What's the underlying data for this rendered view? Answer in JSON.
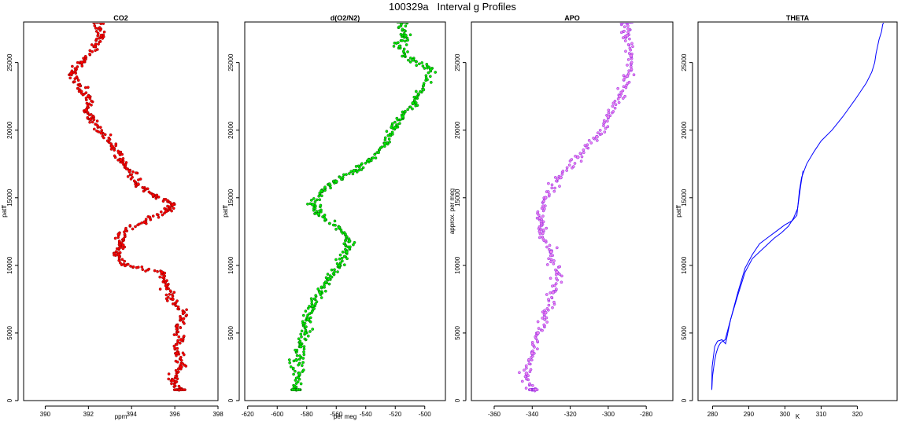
{
  "page": {
    "title": "100329a   Interval g Profiles"
  },
  "chart_data": [
    {
      "type": "scatter",
      "title": "CO2",
      "xlabel": "ppm",
      "ylabel": "patff",
      "xlim": [
        389,
        398
      ],
      "ylim": [
        0,
        28000
      ],
      "x_ticks": [
        390,
        392,
        394,
        396,
        398
      ],
      "y_ticks": [
        0,
        5000,
        10000,
        15000,
        20000,
        25000
      ],
      "marker_color": "#ff0000",
      "outline_color": "#8b0000",
      "points": [
        [
          396.2,
          800
        ],
        [
          395.9,
          1500
        ],
        [
          396.3,
          2500
        ],
        [
          396.1,
          3500
        ],
        [
          396.3,
          4500
        ],
        [
          396.1,
          5500
        ],
        [
          396.4,
          6500
        ],
        [
          395.9,
          7500
        ],
        [
          395.6,
          8500
        ],
        [
          395.4,
          9500
        ],
        [
          393.7,
          10000
        ],
        [
          393.4,
          10800
        ],
        [
          393.6,
          11500
        ],
        [
          393.4,
          12300
        ],
        [
          394.6,
          13200
        ],
        [
          395.6,
          14000
        ],
        [
          395.9,
          14500
        ],
        [
          395.0,
          15200
        ],
        [
          394.3,
          16000
        ],
        [
          393.9,
          17000
        ],
        [
          393.5,
          17800
        ],
        [
          393.1,
          18800
        ],
        [
          392.6,
          19800
        ],
        [
          392.1,
          20800
        ],
        [
          391.9,
          21500
        ],
        [
          392.0,
          22500
        ],
        [
          391.6,
          23300
        ],
        [
          391.2,
          24200
        ],
        [
          391.7,
          25000
        ],
        [
          392.3,
          26200
        ],
        [
          392.6,
          27000
        ],
        [
          392.4,
          28000
        ]
      ]
    },
    {
      "type": "scatter",
      "title": "d(O2/N2)",
      "xlabel": "per meg",
      "ylabel": "patff",
      "xlim": [
        -622,
        -486
      ],
      "ylim": [
        0,
        28000
      ],
      "x_ticks": [
        -620,
        -600,
        -580,
        -560,
        -540,
        -520,
        -500
      ],
      "y_ticks": [
        0,
        5000,
        10000,
        15000,
        20000,
        25000
      ],
      "marker_color": "#00ee00",
      "outline_color": "#006400",
      "points": [
        [
          -587,
          800
        ],
        [
          -585,
          2000
        ],
        [
          -587,
          3000
        ],
        [
          -584,
          4000
        ],
        [
          -581,
          5000
        ],
        [
          -579,
          6000
        ],
        [
          -576,
          7000
        ],
        [
          -571,
          8000
        ],
        [
          -565,
          9000
        ],
        [
          -558,
          10000
        ],
        [
          -553,
          11000
        ],
        [
          -551,
          11800
        ],
        [
          -558,
          12800
        ],
        [
          -572,
          13800
        ],
        [
          -576,
          14500
        ],
        [
          -570,
          15500
        ],
        [
          -560,
          16200
        ],
        [
          -548,
          17000
        ],
        [
          -538,
          17800
        ],
        [
          -527,
          19000
        ],
        [
          -520,
          20200
        ],
        [
          -515,
          21000
        ],
        [
          -508,
          22000
        ],
        [
          -501,
          23000
        ],
        [
          -496,
          24500
        ],
        [
          -508,
          25200
        ],
        [
          -517,
          26200
        ],
        [
          -513,
          27000
        ],
        [
          -515,
          28000
        ]
      ]
    },
    {
      "type": "scatter",
      "title": "APO",
      "xlabel": "",
      "ylabel": "approx. per meg",
      "xlim": [
        -372,
        -266
      ],
      "ylim": [
        0,
        28000
      ],
      "x_ticks": [
        -360,
        -340,
        -320,
        -300,
        -280
      ],
      "y_ticks": [
        0,
        5000,
        10000,
        15000,
        20000,
        25000
      ],
      "marker_color": "#ee82ee",
      "outline_color": "#8a2be2",
      "points": [
        [
          -340,
          800
        ],
        [
          -343,
          2000
        ],
        [
          -340,
          3500
        ],
        [
          -337,
          5000
        ],
        [
          -333,
          6500
        ],
        [
          -329,
          8000
        ],
        [
          -327,
          9500
        ],
        [
          -330,
          11000
        ],
        [
          -336,
          12500
        ],
        [
          -336,
          13500
        ],
        [
          -333,
          15000
        ],
        [
          -325,
          16500
        ],
        [
          -316,
          18000
        ],
        [
          -306,
          19500
        ],
        [
          -300,
          21000
        ],
        [
          -294,
          22500
        ],
        [
          -290,
          24000
        ],
        [
          -288,
          25500
        ],
        [
          -290,
          27000
        ],
        [
          -290,
          28000
        ]
      ]
    },
    {
      "type": "line",
      "title": "THETA",
      "xlabel": "K",
      "ylabel": "patff",
      "xlim": [
        276,
        331
      ],
      "ylim": [
        0,
        28000
      ],
      "x_ticks": [
        280,
        290,
        300,
        310,
        320
      ],
      "y_ticks": [
        0,
        5000,
        10000,
        15000,
        20000,
        25000
      ],
      "line_color": "#0000ff",
      "series": [
        {
          "x": [
            279.8,
            279.9,
            280.6,
            281.4,
            282.6,
            283.6,
            285.0,
            287.0,
            289.0,
            291.0,
            293.0,
            295.0,
            297.5,
            300.0,
            302.0,
            303.3,
            304.0,
            304.6,
            306.0,
            308.0,
            310.0,
            313.0,
            316.0,
            319.5,
            322.5,
            324.0,
            324.8,
            325.2,
            326.0,
            326.7,
            327.0,
            327.3,
            327.0
          ],
          "y": [
            800,
            2500,
            4000,
            4400,
            4500,
            4200,
            6000,
            8000,
            9800,
            10800,
            11600,
            12000,
            12500,
            13000,
            13300,
            13700,
            15500,
            16500,
            17500,
            18400,
            19200,
            20000,
            21000,
            22300,
            23500,
            24300,
            25000,
            25700,
            26700,
            27300,
            27800,
            28000,
            28000
          ]
        },
        {
          "x": [
            279.8,
            280.0,
            280.5,
            281.0,
            281.6,
            282.3,
            283.5,
            285.0,
            287.0,
            289.0,
            291.0,
            293.0,
            295.0,
            297.0,
            299.0,
            301.0,
            302.4,
            303.5,
            304.3,
            305.0
          ],
          "y": [
            800,
            1800,
            2800,
            3500,
            4000,
            4300,
            4500,
            6000,
            7800,
            9500,
            10500,
            11000,
            11500,
            12000,
            12400,
            12900,
            13500,
            14200,
            15800,
            17000
          ]
        }
      ]
    }
  ]
}
